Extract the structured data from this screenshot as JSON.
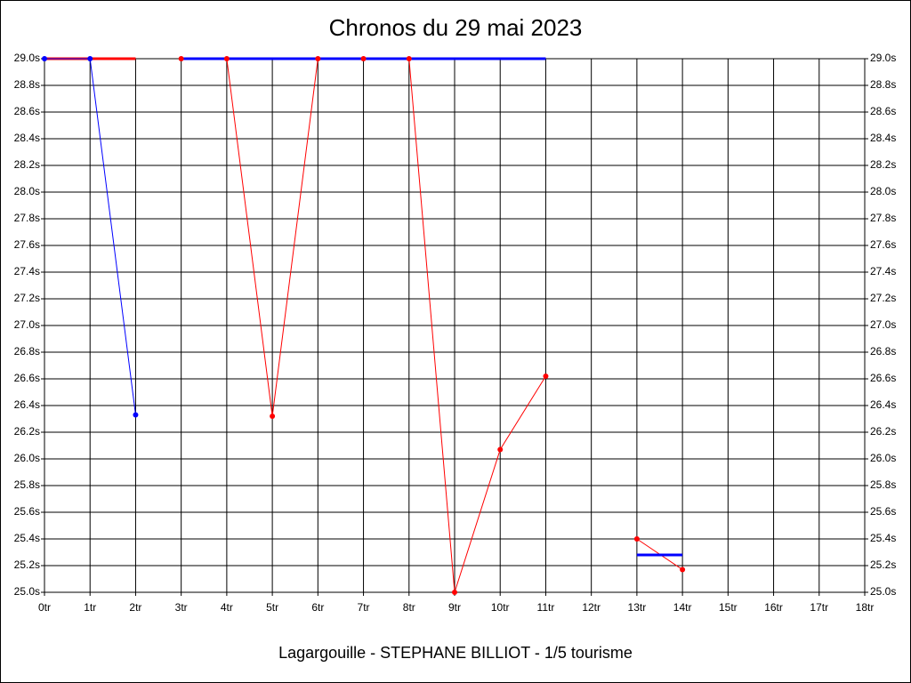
{
  "chart_data": {
    "type": "line",
    "title": "Chronos du 29 mai 2023",
    "x_label": "Lagargouille - STEPHANE BILLIOT - 1/5 tourisme",
    "x": [
      0,
      1,
      2,
      3,
      4,
      5,
      6,
      7,
      8,
      9,
      10,
      11,
      12,
      13,
      14,
      15,
      16,
      17,
      18
    ],
    "series": [
      {
        "color": "#ff0000",
        "width": 3,
        "markers": false,
        "values": [
          29.0,
          29.0,
          29.0,
          null,
          null,
          null,
          null,
          null,
          null,
          null,
          null,
          null,
          null,
          null,
          null,
          null,
          null,
          null,
          null
        ]
      },
      {
        "color": "#0000ff",
        "width": 1,
        "markers": true,
        "values": [
          29.0,
          29.0,
          26.33,
          null,
          null,
          null,
          null,
          null,
          null,
          null,
          null,
          null,
          null,
          null,
          null,
          null,
          null,
          null,
          null
        ]
      },
      {
        "color": "#ff0000",
        "width": 1,
        "markers": true,
        "values": [
          null,
          null,
          null,
          29.0,
          29.0,
          26.32,
          29.0,
          29.0,
          29.0,
          25.0,
          26.07,
          26.62,
          null,
          25.4,
          25.17,
          null,
          null,
          null,
          null
        ]
      },
      {
        "color": "#0000ff",
        "width": 3,
        "markers": false,
        "values": [
          null,
          null,
          null,
          29.0,
          29.0,
          29.0,
          29.0,
          29.0,
          29.0,
          29.0,
          29.0,
          29.0,
          null,
          25.28,
          25.28,
          null,
          null,
          null,
          null
        ]
      }
    ],
    "xlim": [
      0,
      18
    ],
    "xticks": [
      {
        "value": 0,
        "label": "0tr"
      },
      {
        "value": 1,
        "label": "1tr"
      },
      {
        "value": 2,
        "label": "2tr"
      },
      {
        "value": 3,
        "label": "3tr"
      },
      {
        "value": 4,
        "label": "4tr"
      },
      {
        "value": 5,
        "label": "5tr"
      },
      {
        "value": 6,
        "label": "6tr"
      },
      {
        "value": 7,
        "label": "7tr"
      },
      {
        "value": 8,
        "label": "8tr"
      },
      {
        "value": 9,
        "label": "9tr"
      },
      {
        "value": 10,
        "label": "10tr"
      },
      {
        "value": 11,
        "label": "11tr"
      },
      {
        "value": 12,
        "label": "12tr"
      },
      {
        "value": 13,
        "label": "13tr"
      },
      {
        "value": 14,
        "label": "14tr"
      },
      {
        "value": 15,
        "label": "15tr"
      },
      {
        "value": 16,
        "label": "16tr"
      },
      {
        "value": 17,
        "label": "17tr"
      },
      {
        "value": 18,
        "label": "18tr"
      }
    ],
    "ylim": [
      25.0,
      29.0
    ],
    "yticks": [
      {
        "value": 25.0,
        "label": "25.0s"
      },
      {
        "value": 25.2,
        "label": "25.2s"
      },
      {
        "value": 25.4,
        "label": "25.4s"
      },
      {
        "value": 25.6,
        "label": "25.6s"
      },
      {
        "value": 25.8,
        "label": "25.8s"
      },
      {
        "value": 26.0,
        "label": "26.0s"
      },
      {
        "value": 26.2,
        "label": "26.2s"
      },
      {
        "value": 26.4,
        "label": "26.4s"
      },
      {
        "value": 26.6,
        "label": "26.6s"
      },
      {
        "value": 26.8,
        "label": "26.8s"
      },
      {
        "value": 27.0,
        "label": "27.0s"
      },
      {
        "value": 27.2,
        "label": "27.2s"
      },
      {
        "value": 27.4,
        "label": "27.4s"
      },
      {
        "value": 27.6,
        "label": "27.6s"
      },
      {
        "value": 27.8,
        "label": "27.8s"
      },
      {
        "value": 28.0,
        "label": "28.0s"
      },
      {
        "value": 28.2,
        "label": "28.2s"
      },
      {
        "value": 28.4,
        "label": "28.4s"
      },
      {
        "value": 28.6,
        "label": "28.6s"
      },
      {
        "value": 28.8,
        "label": "28.8s"
      },
      {
        "value": 29.0,
        "label": "29.0s"
      }
    ],
    "grid": true
  }
}
